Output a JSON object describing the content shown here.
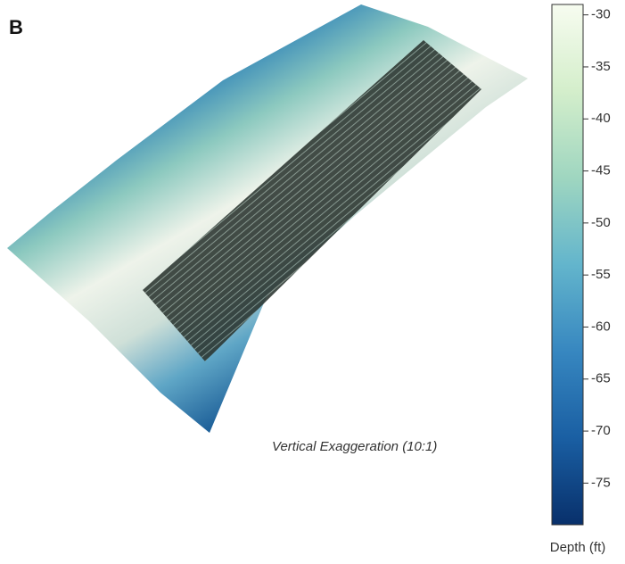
{
  "panel_label": "B",
  "annotation": "Vertical Exaggeration (10:1)",
  "colorbar": {
    "label": "Depth (ft)",
    "lim": [
      -79,
      -29
    ],
    "ticks": [
      -30,
      -35,
      -40,
      -45,
      -50,
      -55,
      -60,
      -65,
      -70,
      -75
    ],
    "colors": [
      "#f7fcf0",
      "#d4eecb",
      "#9fd6c0",
      "#63b5cc",
      "#3787c0",
      "#1a5fa3",
      "#08306b"
    ]
  }
}
